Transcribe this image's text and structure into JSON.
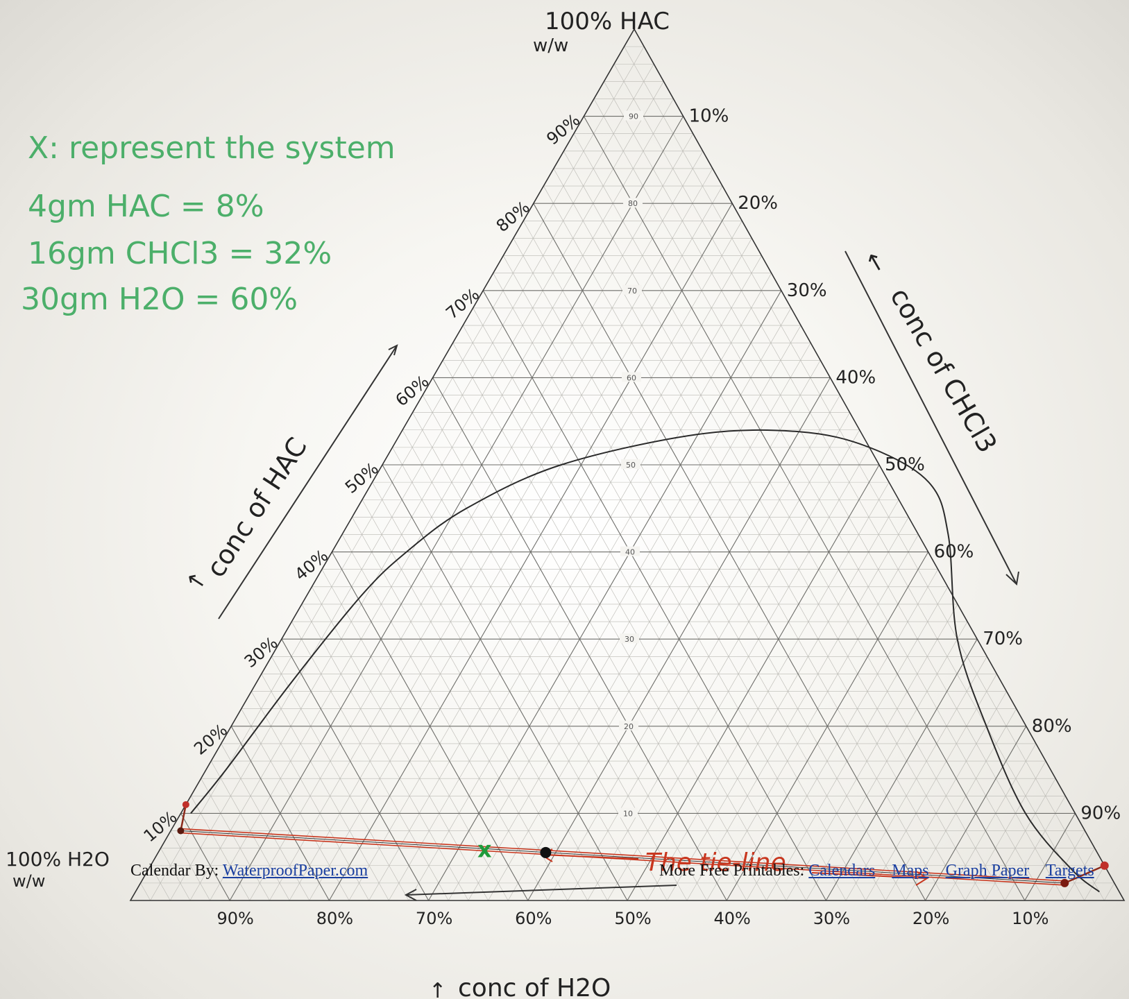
{
  "chart_data": {
    "type": "ternary",
    "components": [
      "HAC",
      "CHCl3",
      "H2O"
    ],
    "grid_tick_labels": [
      "10",
      "20",
      "30",
      "40",
      "50",
      "60",
      "70",
      "80",
      "90"
    ],
    "vertex_labels": {
      "top": "100% HAC",
      "top_sub": "w/w",
      "bottom_left": "100% H2O",
      "bottom_left_sub": "w/w"
    },
    "left_edge_labels": [
      "10%",
      "20%",
      "30%",
      "40%",
      "50%",
      "60%",
      "70%",
      "80%",
      "90%"
    ],
    "right_edge_labels": [
      "10%",
      "20%",
      "30%",
      "40%",
      "50%",
      "60%",
      "70%",
      "80%",
      "90%"
    ],
    "bottom_edge_labels": [
      "90%",
      "80%",
      "70%",
      "60%",
      "50%",
      "40%",
      "30%",
      "20%",
      "10%"
    ],
    "axis_titles": {
      "left": "conc of HAC",
      "right": "conc of CHCl3",
      "bottom": "conc of H2O"
    },
    "binodal_curve": [
      {
        "hac": 10,
        "chcl3": 1
      },
      {
        "hac": 15,
        "chcl3": 2
      },
      {
        "hac": 25,
        "chcl3": 3.5
      },
      {
        "hac": 35,
        "chcl3": 5.5
      },
      {
        "hac": 40,
        "chcl3": 7.5
      },
      {
        "hac": 45,
        "chcl3": 11
      },
      {
        "hac": 50,
        "chcl3": 18
      },
      {
        "hac": 53.5,
        "chcl3": 30
      },
      {
        "hac": 53.8,
        "chcl3": 40
      },
      {
        "hac": 52,
        "chcl3": 48
      },
      {
        "hac": 48,
        "chcl3": 56
      },
      {
        "hac": 42,
        "chcl3": 61
      },
      {
        "hac": 30,
        "chcl3": 68
      },
      {
        "hac": 20,
        "chcl3": 76
      },
      {
        "hac": 10,
        "chcl3": 85
      },
      {
        "hac": 3.5,
        "chcl3": 93
      },
      {
        "hac": 1,
        "chcl3": 97
      }
    ],
    "tie_line": {
      "label": "The tie-line",
      "raffinate": {
        "hac": 8,
        "chcl3": 1
      },
      "extract": {
        "hac": 2,
        "chcl3": 93
      }
    },
    "points": [
      {
        "name": "tie-line midpoint",
        "hac": 5.5,
        "chcl3": 39
      },
      {
        "name": "system X",
        "marker": "x",
        "hac": 8,
        "chcl3": 32
      },
      {
        "name": "red end left",
        "hac": 11,
        "chcl3": 0
      },
      {
        "name": "red end right",
        "hac": 4,
        "chcl3": 96
      }
    ]
  },
  "notes": {
    "title": "X: represent the system",
    "lines": [
      "4gm HAC = 8%",
      "16gm CHCl3 = 32%",
      "30gm H2O = 60%"
    ]
  },
  "footer": {
    "left_text": "Calendar By:",
    "left_link": "WaterproofPaper.com",
    "right_text": "More Free Printables:",
    "links": [
      "Calendars",
      "Maps",
      "Graph Paper",
      "Targets"
    ]
  },
  "colors": {
    "grid": "#8a8a86",
    "ink": "#222222",
    "notes": "#4caf6a",
    "tie_line": "#c8371f",
    "marker_x": "#1f9a3a",
    "link": "#1a3fa0"
  }
}
